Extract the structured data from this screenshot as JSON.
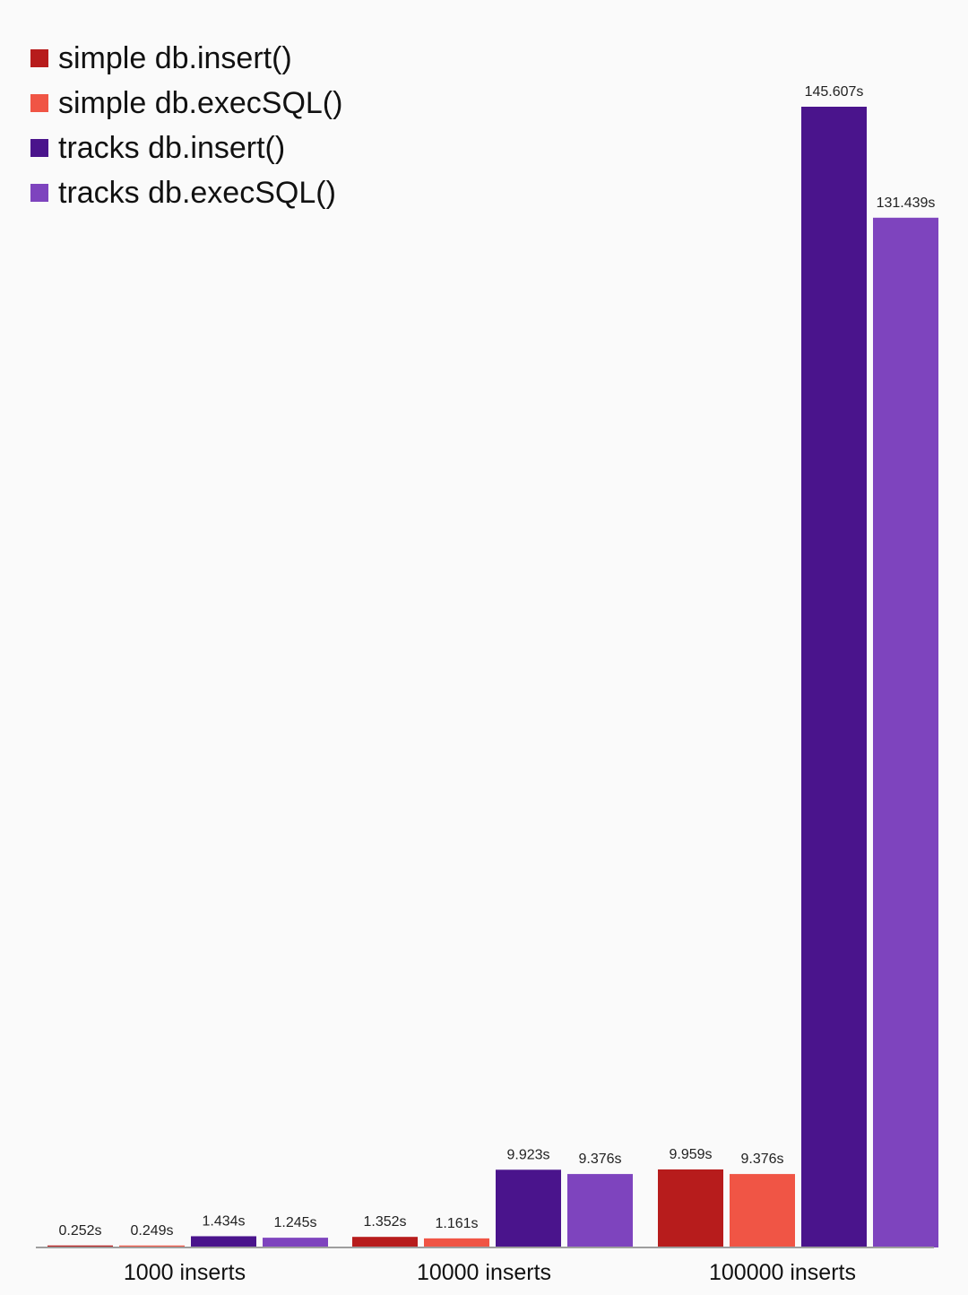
{
  "chart_data": {
    "type": "bar",
    "title": "",
    "xlabel": "",
    "ylabel": "",
    "categories": [
      "1000 inserts",
      "10000 inserts",
      "100000 inserts"
    ],
    "series": [
      {
        "name": "simple db.insert()",
        "color": "#b71c1c",
        "values": [
          0.252,
          1.352,
          9.959
        ],
        "labels": [
          "0.252s",
          "1.352s",
          "9.959s"
        ]
      },
      {
        "name": "simple db.execSQL()",
        "color": "#f05545",
        "values": [
          0.249,
          1.161,
          9.376
        ],
        "labels": [
          "0.249s",
          "1.161s",
          "9.376s"
        ]
      },
      {
        "name": "tracks db.insert()",
        "color": "#4a148c",
        "values": [
          1.434,
          9.923,
          145.607
        ],
        "labels": [
          "1.434s",
          "9.923s",
          "145.607s"
        ]
      },
      {
        "name": "tracks db.execSQL()",
        "color": "#7e44be",
        "values": [
          1.245,
          9.376,
          131.439
        ],
        "labels": [
          "1.245s",
          "9.376s",
          "131.439s"
        ]
      }
    ],
    "ylim": [
      0,
      145.607
    ],
    "grid": false,
    "legend_position": "top-left",
    "axis_color": "#9e9e9e"
  }
}
